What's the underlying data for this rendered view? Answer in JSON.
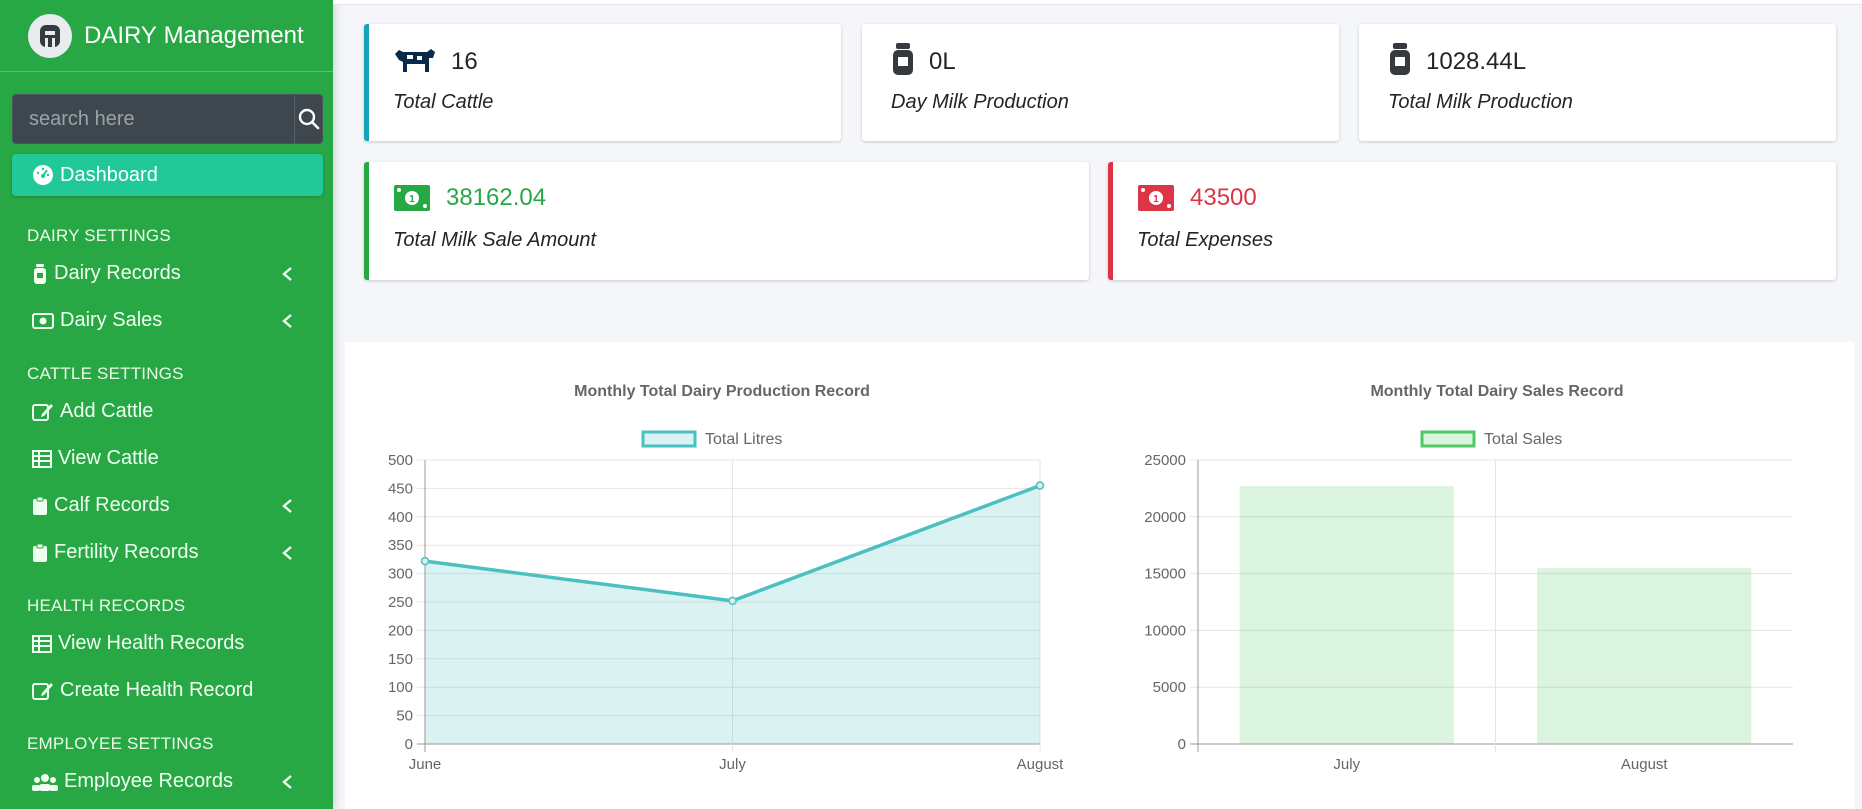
{
  "brand": {
    "bold": "DAIRY",
    "light": " Management"
  },
  "search": {
    "placeholder": "search here"
  },
  "nav": {
    "dashboard": "Dashboard",
    "sections": [
      {
        "header": "DAIRY SETTINGS",
        "items": [
          "Dairy Records",
          "Dairy Sales"
        ]
      },
      {
        "header": "CATTLE SETTINGS",
        "items": [
          "Add Cattle",
          "View Cattle",
          "Calf Records",
          "Fertility Records"
        ]
      },
      {
        "header": "HEALTH RECORDS",
        "items": [
          "View Health Records",
          "Create Health Record"
        ]
      },
      {
        "header": "EMPLOYEE SETTINGS",
        "items": [
          "Employee Records"
        ]
      }
    ]
  },
  "cards": {
    "cattle": {
      "value": "16",
      "label": "Total Cattle"
    },
    "day_milk": {
      "value": "0L",
      "label": "Day Milk Production"
    },
    "total_milk": {
      "value": "1028.44L",
      "label": "Total Milk Production"
    },
    "milk_sale": {
      "value": "38162.04",
      "label": "Total Milk Sale Amount"
    },
    "expenses": {
      "value": "43500",
      "label": "Total Expenses"
    }
  },
  "colors": {
    "sidebar": "#28a745",
    "active": "#20c997",
    "info": "#17a2b8",
    "success": "#28a745",
    "danger": "#dc3545",
    "line": "#4bc0c0"
  },
  "chart_data": [
    {
      "type": "line",
      "title": "Monthly Total Dairy Production Record",
      "categories": [
        "June",
        "July",
        "August"
      ],
      "series": [
        {
          "name": "Total Litres",
          "values": [
            322,
            252,
            455
          ]
        }
      ],
      "ylim": [
        0,
        500
      ],
      "yticks": [
        0,
        50,
        100,
        150,
        200,
        250,
        300,
        350,
        400,
        450,
        500
      ],
      "legend": "top",
      "grid": true
    },
    {
      "type": "bar",
      "title": "Monthly Total Dairy Sales Record",
      "categories": [
        "July",
        "August"
      ],
      "series": [
        {
          "name": "Total Sales",
          "values": [
            22700,
            15500
          ]
        }
      ],
      "ylim": [
        0,
        25000
      ],
      "yticks": [
        0,
        5000,
        10000,
        15000,
        20000,
        25000
      ],
      "legend": "top",
      "grid": true
    }
  ]
}
